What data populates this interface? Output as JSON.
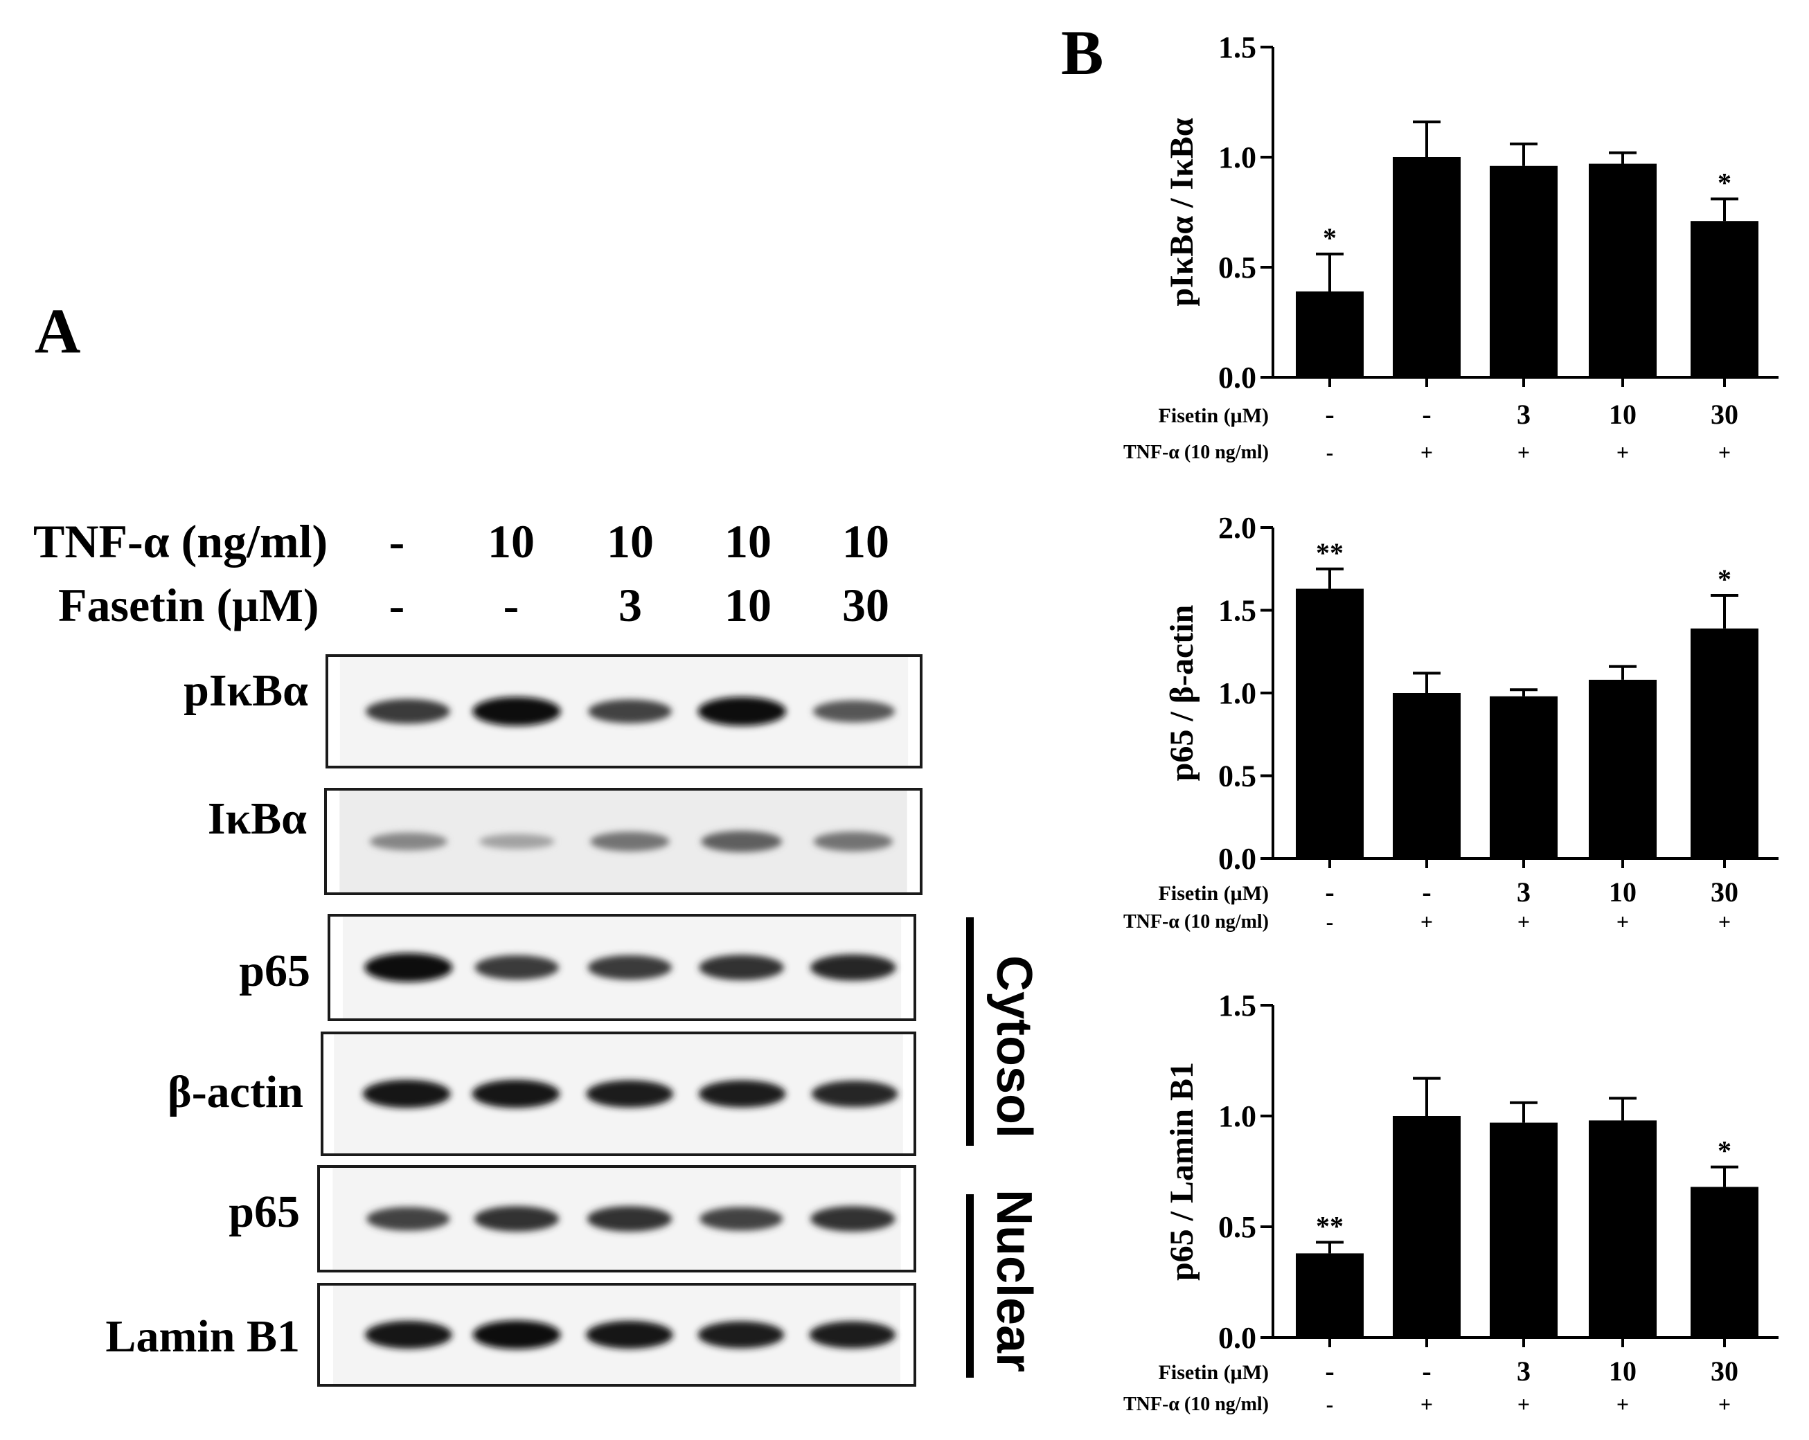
{
  "panels": {
    "a_label": "A",
    "b_label": "B"
  },
  "treatment_header": {
    "tnf_label": "TNF-α (ng/ml)",
    "tnf_values": [
      "-",
      "10",
      "10",
      "10",
      "10"
    ],
    "drug_label": "Fasetin  (μM)",
    "drug_values": [
      "-",
      "-",
      "3",
      "10",
      "30"
    ]
  },
  "blots": [
    {
      "label": "pIκBα",
      "intensities": [
        0.75,
        1.0,
        0.7,
        1.0,
        0.6
      ]
    },
    {
      "label": "IκBα",
      "intensities": [
        0.35,
        0.2,
        0.45,
        0.55,
        0.45
      ]
    },
    {
      "label": "p65",
      "intensities": [
        1.0,
        0.75,
        0.75,
        0.8,
        0.85
      ]
    },
    {
      "label": "β-actin",
      "intensities": [
        0.95,
        0.95,
        0.9,
        0.9,
        0.85
      ]
    },
    {
      "label": "p65",
      "intensities": [
        0.7,
        0.8,
        0.8,
        0.7,
        0.8
      ]
    },
    {
      "label": "Lamin B1",
      "intensities": [
        0.95,
        1.0,
        0.95,
        0.9,
        0.9
      ]
    }
  ],
  "fractions": {
    "cytosol": "Cytosol",
    "nuclear": "Nuclear"
  },
  "chart_data": [
    {
      "type": "bar",
      "ylabel": "pIκBα / IκBα",
      "ylim": [
        0,
        1.5
      ],
      "yticks": [
        "0.0",
        "0.5",
        "1.0",
        "1.5"
      ],
      "values": [
        0.39,
        1.0,
        0.96,
        0.97,
        0.71
      ],
      "errors": [
        0.17,
        0.16,
        0.1,
        0.05,
        0.1
      ],
      "significance": [
        "*",
        "",
        "",
        "",
        "*"
      ],
      "row1_label": "Fisetin (μM)",
      "row1": [
        "-",
        "-",
        "3",
        "10",
        "30"
      ],
      "row2_label": "TNF-α (10 ng/ml)",
      "row2": [
        "-",
        "+",
        "+",
        "+",
        "+"
      ],
      "bar_color": "#000000"
    },
    {
      "type": "bar",
      "ylabel": "p65 / β-actin",
      "ylim": [
        0,
        2.0
      ],
      "yticks": [
        "0.0",
        "0.5",
        "1.0",
        "1.5",
        "2.0"
      ],
      "values": [
        1.63,
        1.0,
        0.98,
        1.08,
        1.39
      ],
      "errors": [
        0.12,
        0.12,
        0.04,
        0.08,
        0.2
      ],
      "significance": [
        "**",
        "",
        "",
        "",
        "*"
      ],
      "row1_label": "Fisetin (μM)",
      "row1": [
        "-",
        "-",
        "3",
        "10",
        "30"
      ],
      "row2_label": "TNF-α (10 ng/ml)",
      "row2": [
        "-",
        "+",
        "+",
        "+",
        "+"
      ],
      "bar_color": "#000000"
    },
    {
      "type": "bar",
      "ylabel": "p65 / Lamin B1",
      "ylim": [
        0,
        1.5
      ],
      "yticks": [
        "0.0",
        "0.5",
        "1.0",
        "1.5"
      ],
      "values": [
        0.38,
        1.0,
        0.97,
        0.98,
        0.68
      ],
      "errors": [
        0.05,
        0.17,
        0.09,
        0.1,
        0.09
      ],
      "significance": [
        "**",
        "",
        "",
        "",
        "*"
      ],
      "row1_label": "Fisetin (μM)",
      "row1": [
        "-",
        "-",
        "3",
        "10",
        "30"
      ],
      "row2_label": "TNF-α (10 ng/ml)",
      "row2": [
        "-",
        "+",
        "+",
        "+",
        "+"
      ],
      "bar_color": "#000000"
    }
  ]
}
